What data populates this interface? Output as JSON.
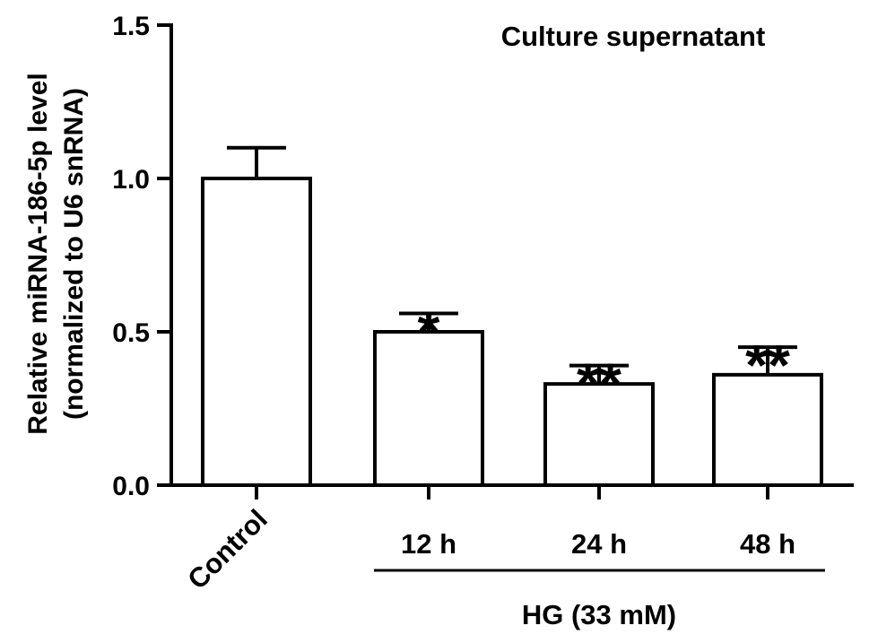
{
  "chart_data": {
    "type": "bar",
    "title": "Culture supernatant",
    "ylabel_lines": [
      "Relative miRNA-186-5p level",
      "(normalized to U6 snRNA)"
    ],
    "xlabel": "",
    "categories": [
      "Control",
      "12 h",
      "24 h",
      "48 h"
    ],
    "values": [
      1.0,
      0.5,
      0.33,
      0.36
    ],
    "errors": [
      0.1,
      0.06,
      0.06,
      0.09
    ],
    "significance": [
      "",
      "*",
      "**",
      "**"
    ],
    "ylim": [
      0,
      1.5
    ],
    "yticks": [
      0.0,
      0.5,
      1.0,
      1.5
    ],
    "ytick_labels": [
      "0.0",
      "0.5",
      "1.0",
      "1.5"
    ],
    "group_label": "HG (33 mM)",
    "group_members": [
      "12 h",
      "24 h",
      "48 h"
    ],
    "grid": false,
    "legend": "none",
    "bar_fill": "#ffffff",
    "bar_stroke": "#000000"
  }
}
